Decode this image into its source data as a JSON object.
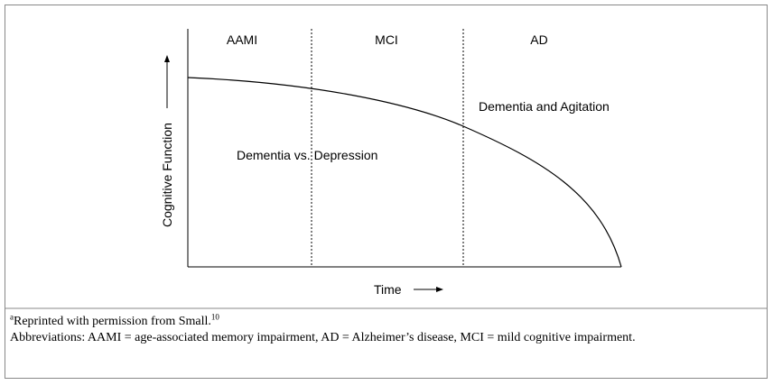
{
  "figure": {
    "phases": [
      "AAMI",
      "MCI",
      "AD"
    ],
    "annotations": [
      "Dementia and Agitation",
      "Dementia vs. Depression"
    ],
    "y_axis_label": "Cognitive Function",
    "x_axis_label": "Time"
  },
  "footnote": {
    "marker": "a",
    "source": "Reprinted with permission from Small.",
    "reference": "10",
    "abbreviations": "Abbreviations: AAMI = age-associated memory impairment, AD = Alzheimer’s disease, MCI = mild cognitive impairment."
  }
}
